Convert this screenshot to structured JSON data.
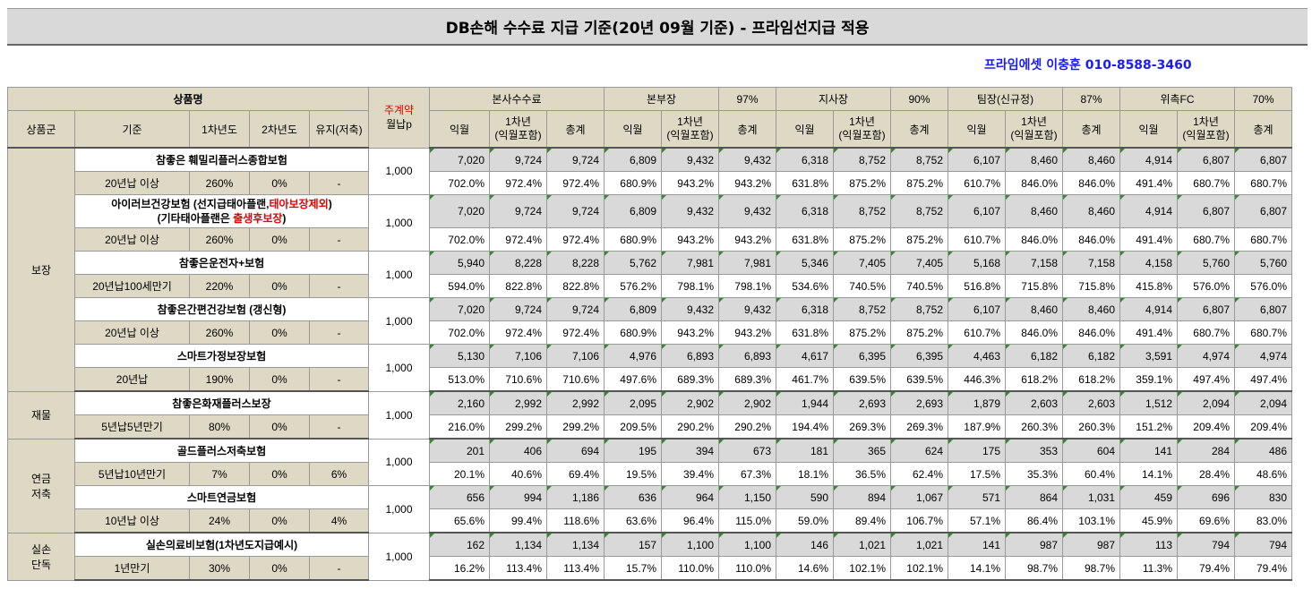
{
  "title": "DB손해 수수료 지급 기준(20년 09월 기준) - 프라임선지급 적용",
  "contact": "프라임에셋 이충훈 010-8588-3460",
  "header": {
    "product_name": "상품명",
    "group": "상품군",
    "standard": "기준",
    "year1": "1차년도",
    "year2": "2차년도",
    "maintain": "유지(저축)",
    "premium_line1": "주계약",
    "premium_line2": "월납p",
    "sections": [
      {
        "name": "본사수수료",
        "rate": ""
      },
      {
        "name": "본부장",
        "rate": "97%"
      },
      {
        "name": "지사장",
        "rate": "90%"
      },
      {
        "name": "팀장(신규정)",
        "rate": "87%"
      },
      {
        "name": "위촉FC",
        "rate": "70%"
      }
    ],
    "sub": {
      "ik": "익월",
      "y1_line1": "1차년",
      "y1_line2": "(익월포함)",
      "total": "총계"
    }
  },
  "groups": [
    {
      "label": "보장",
      "products": [
        {
          "name": "참좋은 훼밀리플러스종합보험",
          "standard": "20년납 이상",
          "y1": "260%",
          "y2": "0%",
          "keep": "-",
          "premium": "1,000",
          "amounts": [
            "7,020",
            "9,724",
            "9,724",
            "6,809",
            "9,432",
            "9,432",
            "6,318",
            "8,752",
            "8,752",
            "6,107",
            "8,460",
            "8,460",
            "4,914",
            "6,807",
            "6,807"
          ],
          "rates": [
            "702.0%",
            "972.4%",
            "972.4%",
            "680.9%",
            "943.2%",
            "943.2%",
            "631.8%",
            "875.2%",
            "875.2%",
            "610.7%",
            "846.0%",
            "846.0%",
            "491.4%",
            "680.7%",
            "680.7%"
          ]
        },
        {
          "name": "아이러브건강보험 (선지급태아플랜,",
          "name_red": "태아보장제외",
          "name_end": ")",
          "name2": "(기타태아플랜은 ",
          "name2_red": "출생후보장",
          "name2_end": ")",
          "standard": "20년납 이상",
          "y1": "260%",
          "y2": "0%",
          "keep": "-",
          "premium": "1,000",
          "amounts": [
            "7,020",
            "9,724",
            "9,724",
            "6,809",
            "9,432",
            "9,432",
            "6,318",
            "8,752",
            "8,752",
            "6,107",
            "8,460",
            "8,460",
            "4,914",
            "6,807",
            "6,807"
          ],
          "rates": [
            "702.0%",
            "972.4%",
            "972.4%",
            "680.9%",
            "943.2%",
            "943.2%",
            "631.8%",
            "875.2%",
            "875.2%",
            "610.7%",
            "846.0%",
            "846.0%",
            "491.4%",
            "680.7%",
            "680.7%"
          ]
        },
        {
          "name": "참좋은운전자+보험",
          "standard": "20년납100세만기",
          "y1": "220%",
          "y2": "0%",
          "keep": "-",
          "premium": "1,000",
          "amounts": [
            "5,940",
            "8,228",
            "8,228",
            "5,762",
            "7,981",
            "7,981",
            "5,346",
            "7,405",
            "7,405",
            "5,168",
            "7,158",
            "7,158",
            "4,158",
            "5,760",
            "5,760"
          ],
          "rates": [
            "594.0%",
            "822.8%",
            "822.8%",
            "576.2%",
            "798.1%",
            "798.1%",
            "534.6%",
            "740.5%",
            "740.5%",
            "516.8%",
            "715.8%",
            "715.8%",
            "415.8%",
            "576.0%",
            "576.0%"
          ]
        },
        {
          "name": "참좋은간편건강보험 (갱신형)",
          "standard": "20년납 이상",
          "y1": "260%",
          "y2": "0%",
          "keep": "-",
          "premium": "1,000",
          "amounts": [
            "7,020",
            "9,724",
            "9,724",
            "6,809",
            "9,432",
            "9,432",
            "6,318",
            "8,752",
            "8,752",
            "6,107",
            "8,460",
            "8,460",
            "4,914",
            "6,807",
            "6,807"
          ],
          "rates": [
            "702.0%",
            "972.4%",
            "972.4%",
            "680.9%",
            "943.2%",
            "943.2%",
            "631.8%",
            "875.2%",
            "875.2%",
            "610.7%",
            "846.0%",
            "846.0%",
            "491.4%",
            "680.7%",
            "680.7%"
          ]
        },
        {
          "name": "스마트가정보장보험",
          "standard": "20년납",
          "y1": "190%",
          "y2": "0%",
          "keep": "-",
          "premium": "1,000",
          "amounts": [
            "5,130",
            "7,106",
            "7,106",
            "4,976",
            "6,893",
            "6,893",
            "4,617",
            "6,395",
            "6,395",
            "4,463",
            "6,182",
            "6,182",
            "3,591",
            "4,974",
            "4,974"
          ],
          "rates": [
            "513.0%",
            "710.6%",
            "710.6%",
            "497.6%",
            "689.3%",
            "689.3%",
            "461.7%",
            "639.5%",
            "639.5%",
            "446.3%",
            "618.2%",
            "618.2%",
            "359.1%",
            "497.4%",
            "497.4%"
          ]
        }
      ]
    },
    {
      "label": "재물",
      "products": [
        {
          "name": "참좋은화재플러스보장",
          "standard": "5년납5년만기",
          "y1": "80%",
          "y2": "0%",
          "keep": "-",
          "premium": "1,000",
          "amounts": [
            "2,160",
            "2,992",
            "2,992",
            "2,095",
            "2,902",
            "2,902",
            "1,944",
            "2,693",
            "2,693",
            "1,879",
            "2,603",
            "2,603",
            "1,512",
            "2,094",
            "2,094"
          ],
          "rates": [
            "216.0%",
            "299.2%",
            "299.2%",
            "209.5%",
            "290.2%",
            "290.2%",
            "194.4%",
            "269.3%",
            "269.3%",
            "187.9%",
            "260.3%",
            "260.3%",
            "151.2%",
            "209.4%",
            "209.4%"
          ]
        }
      ]
    },
    {
      "label": "연금\n저축",
      "products": [
        {
          "name": "골드플러스저축보험",
          "standard": "5년납10년만기",
          "y1": "7%",
          "y2": "0%",
          "keep": "6%",
          "premium": "1,000",
          "amounts": [
            "201",
            "406",
            "694",
            "195",
            "394",
            "673",
            "181",
            "365",
            "624",
            "175",
            "353",
            "604",
            "141",
            "284",
            "486"
          ],
          "rates": [
            "20.1%",
            "40.6%",
            "69.4%",
            "19.5%",
            "39.4%",
            "67.3%",
            "18.1%",
            "36.5%",
            "62.4%",
            "17.5%",
            "35.3%",
            "60.4%",
            "14.1%",
            "28.4%",
            "48.6%"
          ]
        },
        {
          "name": "스마트연금보험",
          "standard": "10년납 이상",
          "y1": "24%",
          "y2": "0%",
          "keep": "4%",
          "premium": "1,000",
          "amounts": [
            "656",
            "994",
            "1,186",
            "636",
            "964",
            "1,150",
            "590",
            "894",
            "1,067",
            "571",
            "864",
            "1,031",
            "459",
            "696",
            "830"
          ],
          "rates": [
            "65.6%",
            "99.4%",
            "118.6%",
            "63.6%",
            "96.4%",
            "115.0%",
            "59.0%",
            "89.4%",
            "106.7%",
            "57.1%",
            "86.4%",
            "103.1%",
            "45.9%",
            "69.6%",
            "83.0%"
          ]
        }
      ]
    },
    {
      "label": "실손\n단독",
      "products": [
        {
          "name": "실손의료비보험(1차년도지급예시)",
          "standard": "1년만기",
          "y1": "30%",
          "y2": "0%",
          "keep": "-",
          "premium": "1,000",
          "amounts": [
            "162",
            "1,134",
            "1,134",
            "157",
            "1,100",
            "1,100",
            "146",
            "1,021",
            "1,021",
            "141",
            "987",
            "987",
            "113",
            "794",
            "794"
          ],
          "rates": [
            "16.2%",
            "113.4%",
            "113.4%",
            "15.7%",
            "110.0%",
            "110.0%",
            "14.6%",
            "102.1%",
            "102.1%",
            "14.1%",
            "98.7%",
            "98.7%",
            "11.3%",
            "79.4%",
            "79.4%"
          ]
        }
      ]
    }
  ]
}
